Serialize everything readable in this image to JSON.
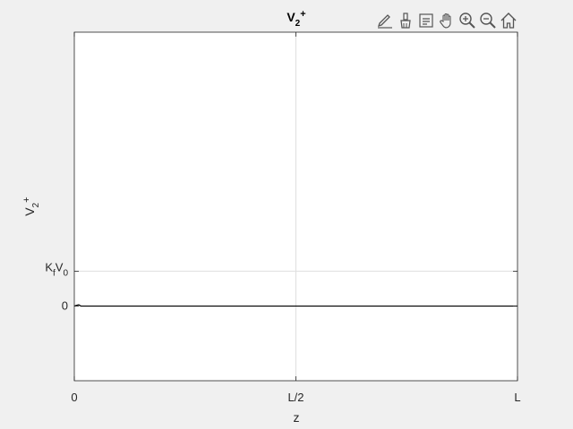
{
  "toolbar": {
    "items": [
      {
        "name": "edit-plot-icon"
      },
      {
        "name": "brush-icon"
      },
      {
        "name": "data-tips-icon"
      },
      {
        "name": "pan-hand-icon"
      },
      {
        "name": "zoom-in-icon"
      },
      {
        "name": "zoom-out-icon"
      },
      {
        "name": "home-icon"
      }
    ]
  },
  "chart_data": {
    "type": "line",
    "title": {
      "base": "V",
      "sub": "2",
      "sup": "+"
    },
    "xlabel": "z",
    "ylabel": {
      "base": "V",
      "sub": "2",
      "sup": "+"
    },
    "xlim": [
      0,
      1
    ],
    "ylim": [
      -1.5,
      5.5
    ],
    "xticks": [
      {
        "value": 0,
        "label": "0"
      },
      {
        "value": 0.5,
        "label": "L/2"
      },
      {
        "value": 1,
        "label": "L"
      }
    ],
    "yticks": [
      {
        "value": 0,
        "label": "0"
      },
      {
        "value": 0.7,
        "label": {
          "base1": "K",
          "sub1": "f",
          "base2": "V",
          "sub2": "0"
        }
      }
    ],
    "grid": true,
    "series": [
      {
        "x": [
          0,
          0.005,
          0.01,
          0.015,
          1
        ],
        "y": [
          0,
          0.015,
          0.025,
          0,
          0
        ]
      }
    ],
    "colors": {
      "figure_bg": "#f0f0f0",
      "axes_bg": "#ffffff",
      "axis": "#262626",
      "grid": "#dfdfdf",
      "line": "#000000",
      "icon": "#555555"
    }
  }
}
